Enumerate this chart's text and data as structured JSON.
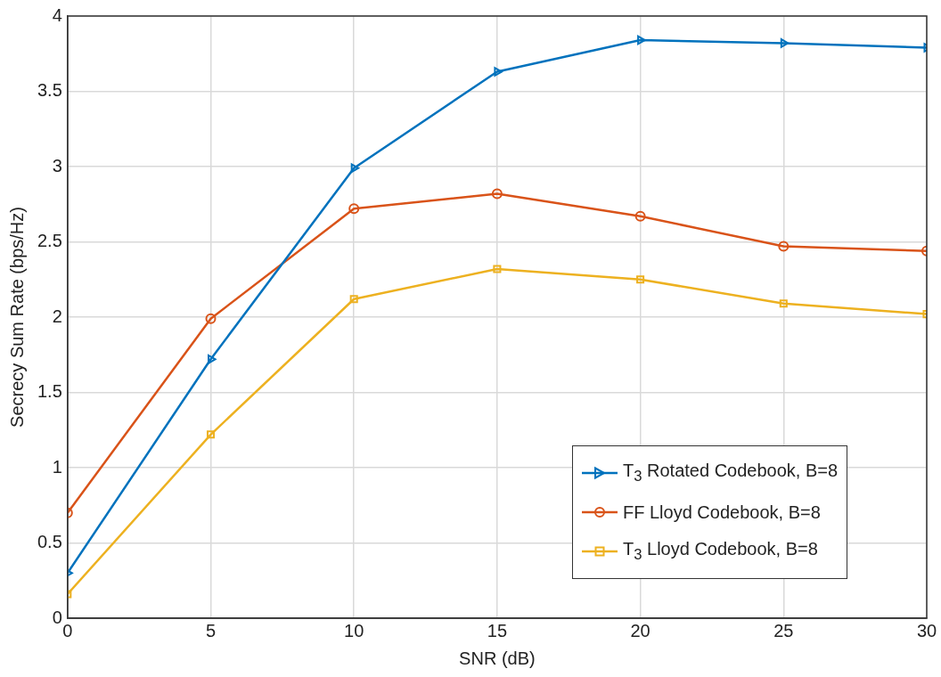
{
  "chart_data": {
    "type": "line",
    "xlabel": "SNR (dB)",
    "ylabel": "Secrecy Sum Rate (bps/Hz)",
    "x": [
      0,
      5,
      10,
      15,
      20,
      25,
      30
    ],
    "xlim": [
      0,
      30
    ],
    "xticks": [
      0,
      5,
      10,
      15,
      20,
      25,
      30
    ],
    "ylim": [
      0,
      4
    ],
    "yticks": [
      0,
      0.5,
      1,
      1.5,
      2,
      2.5,
      3,
      3.5,
      4
    ],
    "grid": true,
    "legend": "bottom right",
    "line_style": "solid",
    "series": [
      {
        "name": "T$_{3}$ Rotated Codebook, B=8",
        "color": "#0072bd",
        "marker": "triangle",
        "values": [
          0.3,
          1.72,
          2.99,
          3.63,
          3.84,
          3.82,
          3.79
        ]
      },
      {
        "name": "FF Lloyd Codebook, B=8",
        "color": "#d95319",
        "marker": "circle",
        "values": [
          0.7,
          1.99,
          2.72,
          2.82,
          2.67,
          2.47,
          2.44
        ]
      },
      {
        "name": "T$_{3}$ Lloyd Codebook, B=8",
        "color": "#edb120",
        "marker": "square",
        "values": [
          0.16,
          1.22,
          2.12,
          2.32,
          2.25,
          2.09,
          2.02
        ]
      }
    ]
  }
}
